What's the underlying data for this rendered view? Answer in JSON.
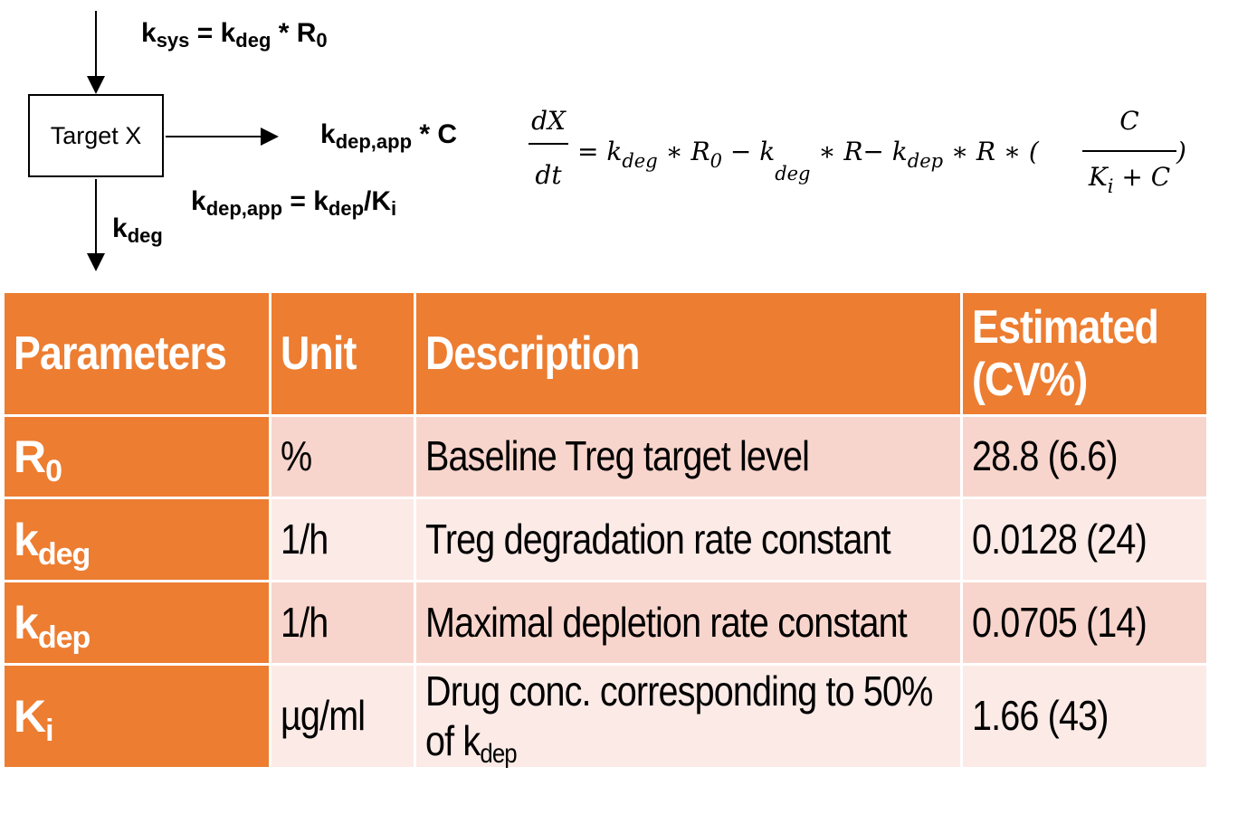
{
  "diagram": {
    "box_label": "Target X",
    "input_label": {
      "k": "k",
      "sub1": "sys",
      "eq": " = k",
      "sub2": "deg",
      "tail": " * R",
      "sub3": "0"
    },
    "output_label": {
      "k": "k",
      "sub1": "dep,app",
      "tail": " * C"
    },
    "kdepapp_eq": {
      "k": "k",
      "sub1": "dep,app",
      "eq": " = k",
      "sub2": "dep",
      "tail": "/K",
      "sub3": "i"
    },
    "kdeg_label": {
      "k": "k",
      "sub1": "deg"
    }
  },
  "equation": {
    "lhs_num": "dX",
    "lhs_den": "dt",
    "t1": "= k",
    "t1s": "deg",
    "t2": " ∗ R",
    "t2s": "0",
    "t3": " − k",
    "t3s": "deg",
    "t4": " ∗ R− k",
    "t4s": "dep",
    "t5": " ∗ R ∗ (",
    "frac_num": "C",
    "frac_den_a": "K",
    "frac_den_s": "i",
    "frac_den_b": " + C",
    "close": ")"
  },
  "table": {
    "headers": [
      "Parameters",
      "Unit",
      "Description",
      "Estimated (CV%)"
    ],
    "rows": [
      {
        "param": "R",
        "param_sub": "0",
        "unit": "%",
        "description": "Baseline Treg target level",
        "estimate": "28.8 (6.6)"
      },
      {
        "param": "k",
        "param_sub": "deg",
        "unit": "1/h",
        "description": "Treg degradation rate constant",
        "estimate": "0.0128 (24)"
      },
      {
        "param": "k",
        "param_sub": "dep",
        "unit": "1/h",
        "description": "Maximal depletion rate constant",
        "estimate": "0.0705 (14)"
      },
      {
        "param": "K",
        "param_sub": "i",
        "unit": "µg/ml",
        "description": "Drug conc. corresponding to 50% of k",
        "description_sub": "dep",
        "estimate": "1.66 (43)"
      }
    ]
  },
  "colors": {
    "header_bg": "#ED7D31",
    "row_odd": "#F8D5CC",
    "row_even": "#FBEAE6"
  }
}
